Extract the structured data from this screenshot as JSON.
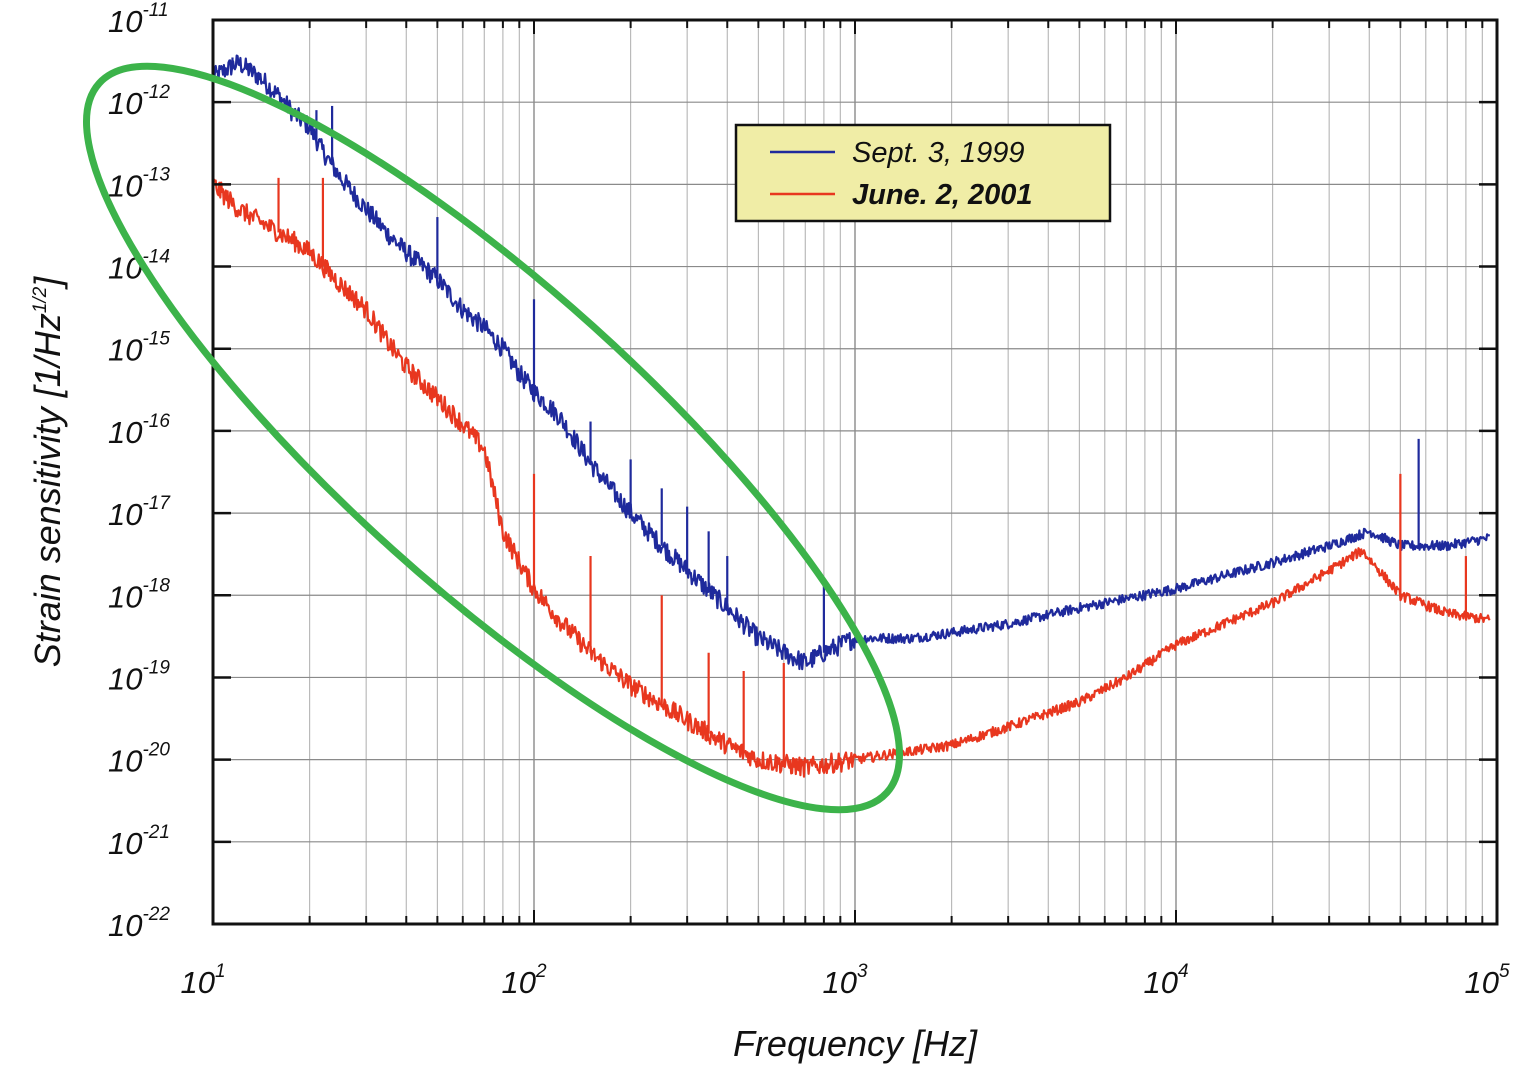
{
  "chart_data": {
    "type": "line",
    "title": "",
    "xlabel": "Frequency [Hz]",
    "ylabel": {
      "main": "Strain sensitivity [1/Hz",
      "sup": "1/2",
      "end": "]"
    },
    "x_scale": "log",
    "y_scale": "log",
    "xlim": [
      10,
      100000
    ],
    "ylim": [
      1e-22,
      1e-11
    ],
    "grid": true,
    "legend_position": "top-center",
    "x_ticks": [
      {
        "base": "10",
        "exp": "1",
        "value": 10
      },
      {
        "base": "10",
        "exp": "2",
        "value": 100
      },
      {
        "base": "10",
        "exp": "3",
        "value": 1000
      },
      {
        "base": "10",
        "exp": "4",
        "value": 10000
      },
      {
        "base": "10",
        "exp": "5",
        "value": 100000
      }
    ],
    "y_ticks": [
      {
        "base": "10",
        "exp": "-11",
        "value": -11
      },
      {
        "base": "10",
        "exp": "-12",
        "value": -12
      },
      {
        "base": "10",
        "exp": "-13",
        "value": -13
      },
      {
        "base": "10",
        "exp": "-14",
        "value": -14
      },
      {
        "base": "10",
        "exp": "-15",
        "value": -15
      },
      {
        "base": "10",
        "exp": "-16",
        "value": -16
      },
      {
        "base": "10",
        "exp": "-17",
        "value": -17
      },
      {
        "base": "10",
        "exp": "-18",
        "value": -18
      },
      {
        "base": "10",
        "exp": "-19",
        "value": -19
      },
      {
        "base": "10",
        "exp": "-20",
        "value": -20
      },
      {
        "base": "10",
        "exp": "-21",
        "value": -21
      },
      {
        "base": "10",
        "exp": "-22",
        "value": -22
      }
    ],
    "series": [
      {
        "name": "Sept. 3, 1999",
        "color": "#1f2a9c",
        "points": [
          [
            10,
            2e-12
          ],
          [
            11,
            2.5e-12
          ],
          [
            12,
            3e-12
          ],
          [
            14,
            2e-12
          ],
          [
            16,
            1.2e-12
          ],
          [
            18,
            7e-13
          ],
          [
            20,
            5e-13
          ],
          [
            22,
            2.5e-13
          ],
          [
            25,
            1.2e-13
          ],
          [
            30,
            5e-14
          ],
          [
            35,
            2.5e-14
          ],
          [
            40,
            1.5e-14
          ],
          [
            45,
            1e-14
          ],
          [
            50,
            7e-15
          ],
          [
            60,
            3e-15
          ],
          [
            70,
            1.8e-15
          ],
          [
            80,
            1e-15
          ],
          [
            90,
            5e-16
          ],
          [
            100,
            3e-16
          ],
          [
            120,
            1.5e-16
          ],
          [
            150,
            4e-17
          ],
          [
            200,
            1e-17
          ],
          [
            250,
            4e-18
          ],
          [
            300,
            2e-18
          ],
          [
            400,
            7e-19
          ],
          [
            500,
            3e-19
          ],
          [
            600,
            2e-19
          ],
          [
            700,
            1.5e-19
          ],
          [
            800,
            2e-19
          ],
          [
            1000,
            3e-19
          ],
          [
            1500,
            3e-19
          ],
          [
            2000,
            3.5e-19
          ],
          [
            3000,
            4.5e-19
          ],
          [
            5000,
            7e-19
          ],
          [
            10000,
            1.2e-18
          ],
          [
            20000,
            2.5e-18
          ],
          [
            30000,
            4e-18
          ],
          [
            40000,
            6e-18
          ],
          [
            50000,
            4e-18
          ],
          [
            70000,
            4e-18
          ],
          [
            95000,
            5e-18
          ]
        ],
        "peaks": [
          [
            11.5,
            3.5e-12
          ],
          [
            13,
            3e-12
          ],
          [
            21,
            8e-13
          ],
          [
            23.5,
            9e-13
          ],
          [
            50,
            4e-14
          ],
          [
            100,
            4e-15
          ],
          [
            150,
            1.3e-16
          ],
          [
            200,
            4.5e-17
          ],
          [
            250,
            2e-17
          ],
          [
            300,
            1.2e-17
          ],
          [
            350,
            6e-18
          ],
          [
            400,
            3e-18
          ],
          [
            800,
            1.5e-18
          ],
          [
            57000,
            8e-17
          ]
        ]
      },
      {
        "name": "June. 2, 2001",
        "color": "#e8371f",
        "points": [
          [
            10,
            1e-13
          ],
          [
            12,
            5e-14
          ],
          [
            15,
            3e-14
          ],
          [
            18,
            2e-14
          ],
          [
            20,
            1.5e-14
          ],
          [
            25,
            6e-15
          ],
          [
            30,
            3e-15
          ],
          [
            35,
            1.2e-15
          ],
          [
            40,
            6e-16
          ],
          [
            50,
            2.5e-16
          ],
          [
            60,
            1.2e-16
          ],
          [
            70,
            6e-17
          ],
          [
            80,
            6e-18
          ],
          [
            90,
            2.5e-18
          ],
          [
            100,
            1.2e-18
          ],
          [
            120,
            5e-19
          ],
          [
            150,
            2e-19
          ],
          [
            200,
            8e-20
          ],
          [
            300,
            3e-20
          ],
          [
            400,
            1.5e-20
          ],
          [
            500,
            1e-20
          ],
          [
            700,
            8e-21
          ],
          [
            1000,
            1e-20
          ],
          [
            2000,
            1.5e-20
          ],
          [
            3000,
            2.5e-20
          ],
          [
            5000,
            5e-20
          ],
          [
            7000,
            1e-19
          ],
          [
            10000,
            2.5e-19
          ],
          [
            15000,
            5e-19
          ],
          [
            20000,
            8e-19
          ],
          [
            30000,
            2e-18
          ],
          [
            38000,
            3.5e-18
          ],
          [
            50000,
            1e-18
          ],
          [
            70000,
            6e-19
          ],
          [
            95000,
            5e-19
          ]
        ],
        "peaks": [
          [
            16,
            1.2e-13
          ],
          [
            22,
            1.2e-13
          ],
          [
            100,
            3e-17
          ],
          [
            150,
            3e-18
          ],
          [
            250,
            1e-18
          ],
          [
            350,
            2e-19
          ],
          [
            450,
            1.2e-19
          ],
          [
            600,
            1.5e-19
          ],
          [
            50000,
            3e-17
          ],
          [
            80000,
            3e-18
          ]
        ]
      }
    ],
    "annotation": {
      "shape": "ellipse",
      "color": "#3cb34a"
    }
  }
}
